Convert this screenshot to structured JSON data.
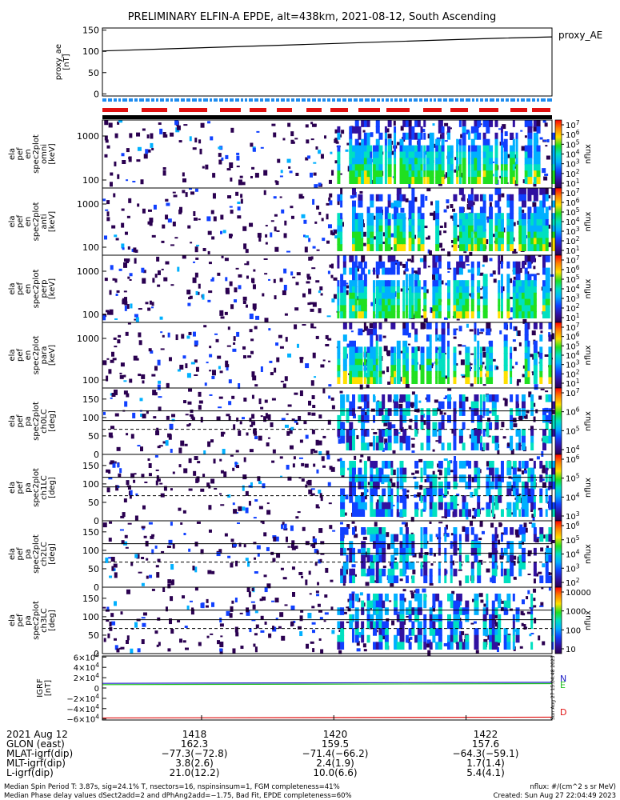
{
  "title": "PRELIMINARY ELFIN-A EPDE, alt=438km, 2021-08-12, South Ascending",
  "colors": {
    "ae_line": "#000000",
    "bar_blue": "#1e8cf0",
    "bar_red": "#e01010",
    "bar_black": "#000000",
    "igrf_N": "#2020c8",
    "igrf_E": "#20c020",
    "igrf_D": "#e01010"
  },
  "chart_data": [
    {
      "id": "proxy_ae",
      "type": "line",
      "ylabel": "proxy_ae\n[nT]",
      "legend": "proxy_AE",
      "ylim": [
        -5,
        155
      ],
      "yticks": [
        "150",
        "100",
        "50",
        "0"
      ],
      "ytick_values": [
        150,
        100,
        50,
        0
      ],
      "x": [
        "1416.5",
        "1417.5",
        "1418.5",
        "1419.5",
        "1420.5",
        "1421.5",
        "1422.5",
        "1423.3"
      ],
      "values": [
        101,
        106,
        111,
        116,
        121,
        126,
        131,
        134
      ]
    },
    {
      "id": "pef_en_spec2plot_omni",
      "type": "heatmap",
      "ylabel": "ela\npef\nen\nspec2plot\nomni\n[keV]",
      "yscale": "log",
      "yticks": [
        "1000",
        "100"
      ],
      "ytick_values": [
        1000,
        100
      ],
      "colorbar_label": "nflux",
      "colorbar_ticks": [
        "10^7",
        "10^6",
        "10^5",
        "10^4",
        "10^3",
        "10^2",
        "10^1"
      ],
      "colorbar_range": [
        1,
        7
      ]
    },
    {
      "id": "pef_en_spec2plot_anti",
      "type": "heatmap",
      "ylabel": "ela\npef\nen\nspec2plot\nanti\n[keV]",
      "yscale": "log",
      "yticks": [
        "1000",
        "100"
      ],
      "ytick_values": [
        1000,
        100
      ],
      "colorbar_label": "nflux",
      "colorbar_ticks": [
        "10^7",
        "10^6",
        "10^5",
        "10^4",
        "10^3",
        "10^2",
        "10^1"
      ],
      "colorbar_range": [
        1,
        7
      ]
    },
    {
      "id": "pef_en_spec2plot_perp",
      "type": "heatmap",
      "ylabel": "ela\npef\nen\nspec2plot\nperp\n[keV]",
      "yscale": "log",
      "yticks": [
        "1000",
        "100"
      ],
      "ytick_values": [
        1000,
        100
      ],
      "colorbar_label": "nflux",
      "colorbar_ticks": [
        "10^7",
        "10^6",
        "10^5",
        "10^4",
        "10^3",
        "10^2",
        "10^1"
      ],
      "colorbar_range": [
        1,
        7
      ]
    },
    {
      "id": "pef_en_spec2plot_para",
      "type": "heatmap",
      "ylabel": "ela\npef\nen\nspec2plot\npara\n[keV]",
      "yscale": "log",
      "yticks": [
        "1000",
        "100"
      ],
      "ytick_values": [
        1000,
        100
      ],
      "colorbar_label": "nflux",
      "colorbar_ticks": [
        "10^7",
        "10^6",
        "10^5",
        "10^4",
        "10^3",
        "10^2",
        "10^1"
      ],
      "colorbar_range": [
        1,
        7
      ]
    },
    {
      "id": "pef_pa_spec2plot_ch0LC",
      "type": "heatmap",
      "ylabel": "ela\npef\npa\nspec2plot\nch0LC\n[deg]",
      "ylim": [
        0,
        180
      ],
      "yticks": [
        "150",
        "100",
        "50",
        "0"
      ],
      "ytick_values": [
        150,
        100,
        50,
        0
      ],
      "colorbar_label": "nflux",
      "colorbar_ticks": [
        "10^7",
        "10^6",
        "10^5",
        "10^4"
      ],
      "colorbar_range": [
        3.5,
        7
      ]
    },
    {
      "id": "pef_pa_spec2plot_ch1LC",
      "type": "heatmap",
      "ylabel": "ela\npef\npa\nspec2plot\nch1LC\n[deg]",
      "ylim": [
        0,
        180
      ],
      "yticks": [
        "150",
        "100",
        "50",
        "0"
      ],
      "ytick_values": [
        150,
        100,
        50,
        0
      ],
      "colorbar_label": "nflux",
      "colorbar_ticks": [
        "10^6",
        "10^5",
        "10^4",
        "10^3"
      ],
      "colorbar_range": [
        3,
        6.5
      ]
    },
    {
      "id": "pef_pa_spec2plot_ch2LC",
      "type": "heatmap",
      "ylabel": "ela\npef\npa\nspec2plot\nch2LC\n[deg]",
      "ylim": [
        0,
        180
      ],
      "yticks": [
        "150",
        "100",
        "50",
        "0"
      ],
      "ytick_values": [
        150,
        100,
        50,
        0
      ],
      "colorbar_label": "nflux",
      "colorbar_ticks": [
        "10^6",
        "10^5",
        "10^4",
        "10^3",
        "10^2"
      ],
      "colorbar_range": [
        2,
        6.5
      ]
    },
    {
      "id": "pef_pa_spec2plot_ch3LC",
      "type": "heatmap",
      "ylabel": "ela\npef\npa\nspec2plot\nch3LC\n[deg]",
      "ylim": [
        0,
        180
      ],
      "yticks": [
        "150",
        "100",
        "50",
        "0"
      ],
      "ytick_values": [
        150,
        100,
        50,
        0
      ],
      "colorbar_label": "nflux",
      "colorbar_ticks": [
        "10000",
        "1000",
        "100",
        "10"
      ],
      "colorbar_range": [
        1,
        4.3
      ]
    },
    {
      "id": "igrf",
      "type": "line",
      "ylabel": "IGRF\n[nT]",
      "ylim": [
        -62000,
        62000
      ],
      "yticks": [
        "6×10^4",
        "4×10^4",
        "2×10^4",
        "0",
        "−2×10^4",
        "−4×10^4",
        "−6×10^4"
      ],
      "ytick_values": [
        60000,
        40000,
        20000,
        0,
        -20000,
        -40000,
        -60000
      ],
      "x": [
        "1416.5",
        "1423.3"
      ],
      "series": [
        {
          "name": "N",
          "values": [
            9000,
            11000
          ]
        },
        {
          "name": "E",
          "values": [
            6500,
            8500
          ]
        },
        {
          "name": "D",
          "values": [
            -58000,
            -56500
          ]
        }
      ]
    }
  ],
  "ephemeris": {
    "date": "2021 Aug 12",
    "row_labels": [
      "GLON (east)",
      "MLAT-igrf(dip)",
      "MLT-igrf(dip)",
      "L-igrf(dip)"
    ],
    "times": [
      "1418",
      "1420",
      "1422"
    ],
    "columns": [
      {
        "time": "1418",
        "values": [
          "162.3",
          "−77.3(−72.8)",
          "3.8(2.6)",
          "21.0(12.2)"
        ]
      },
      {
        "time": "1420",
        "values": [
          "159.5",
          "−71.4(−66.2)",
          "2.4(1.9)",
          "10.0(6.6)"
        ]
      },
      {
        "time": "1422",
        "values": [
          "157.6",
          "−64.3(−59.1)",
          "1.7(1.4)",
          "5.4(4.1)"
        ]
      }
    ]
  },
  "footer": {
    "line1": "Median Spin Period T: 3.87s, sig=24.1% T, nsectors=16, nspinsinsum=1, FGM completeness=41%",
    "line2": "Median Phase delay values dSect2add=2 and dPhAng2add=−1.75, Bad Fit, EPDE completeness=60%",
    "units": "nflux: #/(cm^2 s sr MeV)",
    "created": "Created: Sun Aug 27 22:04:49 2023",
    "side_stamp": "Sun Aug 27 15:04:48 2023"
  }
}
